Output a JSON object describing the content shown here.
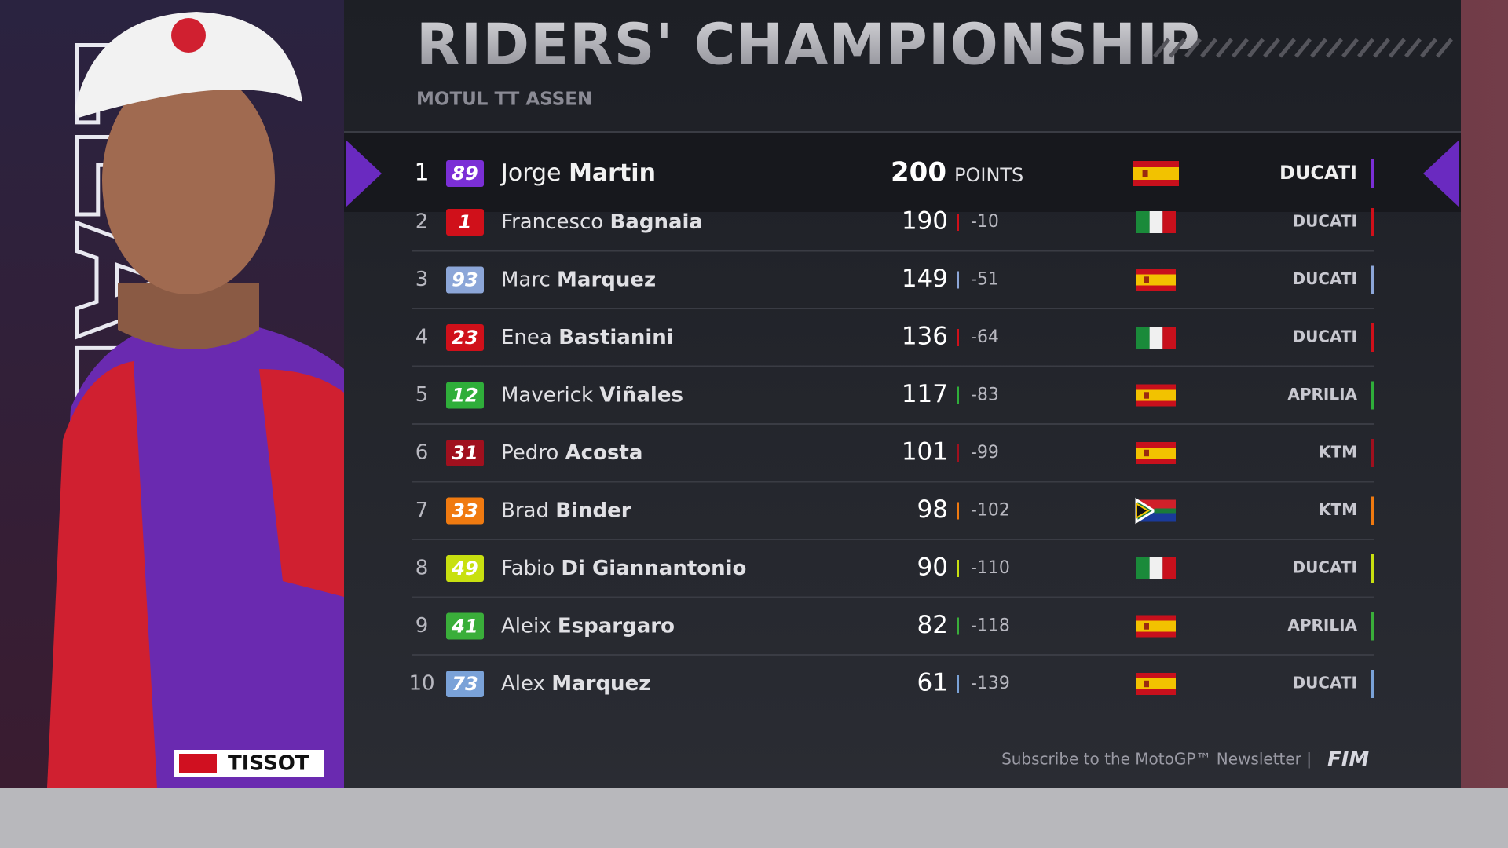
{
  "header": {
    "title": "RIDERS' CHAMPIONSHIP",
    "subtitle": "MOTUL TT ASSEN",
    "points_label": "POINTS"
  },
  "side_text": "LEADER",
  "sponsor": "TISSOT",
  "rows": [
    {
      "pos": "1",
      "number": "89",
      "first": "Jorge",
      "last": "Martin",
      "points": "200",
      "gap": null,
      "team": "DUCATI",
      "color": "#7b2fd6"
    },
    {
      "pos": "2",
      "number": "1",
      "first": "Francesco",
      "last": "Bagnaia",
      "points": "190",
      "gap": "-10",
      "team": "DUCATI",
      "color": "#d0101a"
    },
    {
      "pos": "3",
      "number": "93",
      "first": "Marc",
      "last": "Marquez",
      "points": "149",
      "gap": "-51",
      "team": "DUCATI",
      "color": "#8ca6d8"
    },
    {
      "pos": "4",
      "number": "23",
      "first": "Enea",
      "last": "Bastianini",
      "points": "136",
      "gap": "-64",
      "team": "DUCATI",
      "color": "#d0101a"
    },
    {
      "pos": "5",
      "number": "12",
      "first": "Maverick",
      "last": "Viñales",
      "points": "117",
      "gap": "-83",
      "team": "APRILIA",
      "color": "#2fae3a"
    },
    {
      "pos": "6",
      "number": "31",
      "first": "Pedro",
      "last": "Acosta",
      "points": "101",
      "gap": "-99",
      "team": "KTM",
      "color": "#a0101e"
    },
    {
      "pos": "7",
      "number": "33",
      "first": "Brad",
      "last": "Binder",
      "points": "98",
      "gap": "-102",
      "team": "KTM",
      "color": "#f07a10"
    },
    {
      "pos": "8",
      "number": "49",
      "first": "Fabio",
      "last": "Di Giannantonio",
      "points": "90",
      "gap": "-110",
      "team": "DUCATI",
      "color": "#c8e010"
    },
    {
      "pos": "9",
      "number": "41",
      "first": "Aleix",
      "last": "Espargaro",
      "points": "82",
      "gap": "-118",
      "team": "APRILIA",
      "color": "#3aae3a"
    },
    {
      "pos": "10",
      "number": "73",
      "first": "Alex",
      "last": "Marquez",
      "points": "61",
      "gap": "-139",
      "team": "DUCATI",
      "color": "#7aa2d8"
    }
  ],
  "footer": {
    "text": "Subscribe to the MotoGP™ Newsletter |",
    "logo": "FIM"
  }
}
